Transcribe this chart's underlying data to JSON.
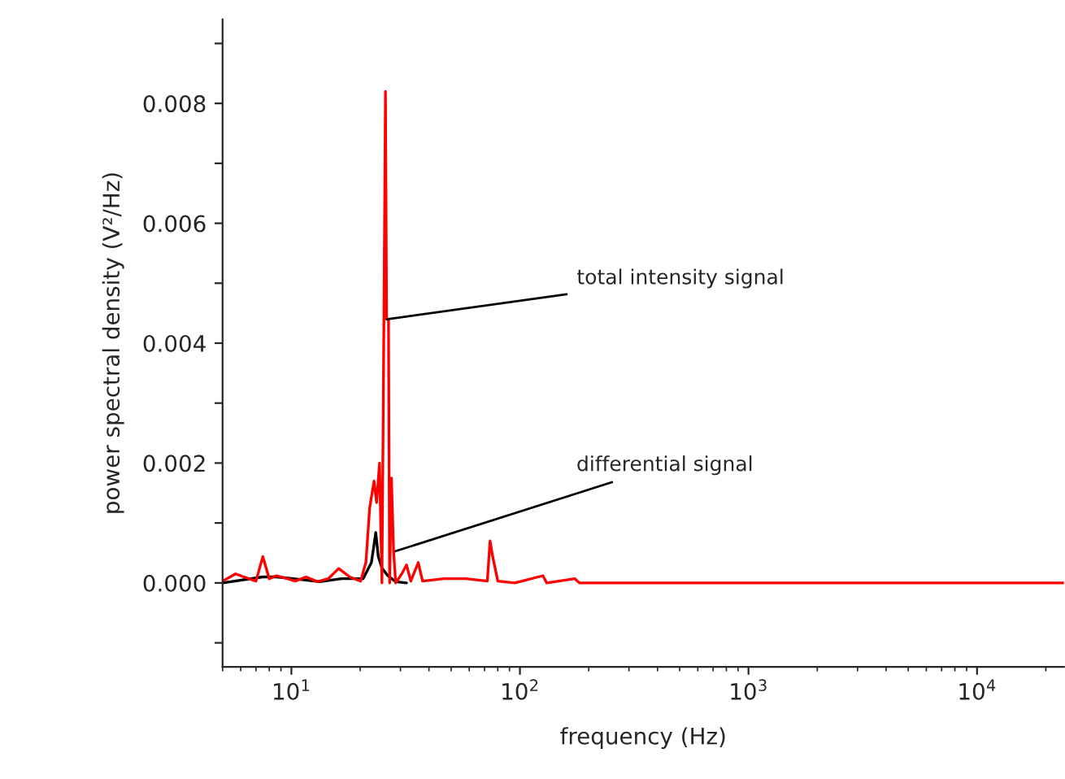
{
  "chart_data": {
    "type": "line",
    "xlabel": "frequency (Hz)",
    "ylabel": "power spectral density (V²/Hz)",
    "log": "x",
    "grid": false,
    "legend": false,
    "marker": "none",
    "line_style": "solid",
    "xlim": [
      5,
      24000
    ],
    "xticks": [
      {
        "value": 10,
        "label": "10$^{1}$"
      },
      {
        "value": 100,
        "label": "10$^{2}$"
      },
      {
        "value": 1000,
        "label": "10$^{3}$"
      },
      {
        "value": 10000,
        "label": "10$^{4}$"
      }
    ],
    "ylim": [
      -0.0014,
      0.0094
    ],
    "yticks": [
      {
        "value": -0.001,
        "label": null
      },
      {
        "value": 0,
        "label": "0.000"
      },
      {
        "value": 0.001,
        "label": null
      },
      {
        "value": 0.002,
        "label": "0.002"
      },
      {
        "value": 0.003,
        "label": null
      },
      {
        "value": 0.004,
        "label": "0.004"
      },
      {
        "value": 0.005,
        "label": null
      },
      {
        "value": 0.006,
        "label": "0.006"
      },
      {
        "value": 0.007,
        "label": null
      },
      {
        "value": 0.008,
        "label": "0.008"
      },
      {
        "value": 0.009,
        "label": null
      }
    ],
    "series": [
      {
        "color": "#000000",
        "x": [
          5.0,
          7.5,
          8.6,
          10.2,
          13.3,
          16.6,
          20.6,
          22.4,
          23.4,
          24.0,
          24.9,
          26.4,
          28.6,
          31.9
        ],
        "values": [
          0,
          0.0001,
          0.0001,
          7e-05,
          2e-05,
          7e-05,
          7e-05,
          0.00034,
          0.00084,
          0.00044,
          0.00025,
          0.00012,
          2e-05,
          0
        ]
      },
      {
        "color": "#ff0000",
        "x": [
          5.0,
          5.7,
          6.2,
          7.0,
          7.5,
          8.0,
          8.6,
          9.6,
          10.4,
          11.6,
          13.0,
          14.5,
          16.1,
          18.0,
          20.1,
          21.2,
          22.0,
          23.0,
          23.6,
          24.3,
          24.9,
          25.4,
          25.8,
          26.1,
          26.6,
          26.9,
          27.4,
          28.0,
          28.6,
          30.5,
          31.9,
          33.3,
          35.9,
          37.5,
          46.6,
          58,
          72,
          74,
          76,
          80,
          95,
          126,
          131,
          174,
          182,
          24000
        ],
        "values": [
          3e-05,
          0.00015,
          0.0001,
          3e-05,
          0.00044,
          7e-05,
          0.00012,
          7e-05,
          3e-05,
          0.0001,
          2e-05,
          7e-05,
          0.00024,
          0.0001,
          3e-05,
          0.00035,
          0.00125,
          0.0017,
          0.00134,
          0.002,
          0,
          0.0044,
          0.0082,
          0.0044,
          0.0044,
          0,
          0.00175,
          0.00053,
          0,
          0.00016,
          0.0003,
          3e-05,
          0.00034,
          3e-05,
          7e-05,
          7e-05,
          3e-05,
          0.0007,
          0.00044,
          3e-05,
          0,
          0.00012,
          0,
          7e-05,
          0,
          0
        ]
      }
    ],
    "annotations": [
      {
        "text": "total intensity signal",
        "x": 26.2,
        "y": 0.0044
      },
      {
        "text": "differential signal",
        "x": 28.6,
        "y": 0.00053
      }
    ]
  }
}
